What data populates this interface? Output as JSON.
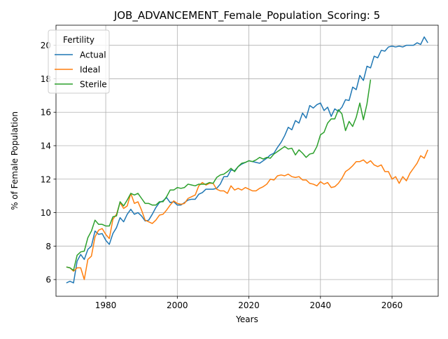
{
  "chart_data": {
    "type": "line",
    "title": "JOB_ADVANCEMENT_Female_Population_Scoring: 5",
    "xlabel": "Years",
    "ylabel": "% of Female Population",
    "xlim": [
      1966.1,
      2072.9
    ],
    "ylim": [
      5.0,
      21.2
    ],
    "xticks": [
      1980,
      2000,
      2020,
      2040,
      2060
    ],
    "yticks": [
      6,
      8,
      10,
      12,
      14,
      16,
      18,
      20
    ],
    "grid": true,
    "legend": {
      "title": "Fertility",
      "placement": "upper-left"
    },
    "series": [
      {
        "name": "Actual",
        "color": "#1f77b4",
        "points": [
          [
            1969,
            5.8
          ],
          [
            1970,
            5.9
          ],
          [
            1971,
            5.8
          ],
          [
            1972,
            7.1
          ],
          [
            1973,
            7.5
          ],
          [
            1974,
            7.2
          ],
          [
            1975,
            7.8
          ],
          [
            1976,
            8.0
          ],
          [
            1977,
            8.9
          ],
          [
            1978,
            8.7
          ],
          [
            1979,
            8.75
          ],
          [
            1980,
            8.35
          ],
          [
            1981,
            8.1
          ],
          [
            1982,
            8.75
          ],
          [
            1983,
            9.1
          ],
          [
            1984,
            9.7
          ],
          [
            1985,
            9.45
          ],
          [
            1986,
            9.9
          ],
          [
            1987,
            10.2
          ],
          [
            1988,
            9.9
          ],
          [
            1989,
            10.0
          ],
          [
            1990,
            9.8
          ],
          [
            1991,
            9.5
          ],
          [
            1992,
            9.55
          ],
          [
            1993,
            9.9
          ],
          [
            1994,
            10.3
          ],
          [
            1995,
            10.6
          ],
          [
            1996,
            10.7
          ],
          [
            1997,
            10.9
          ],
          [
            1998,
            10.6
          ],
          [
            1999,
            10.65
          ],
          [
            2000,
            10.45
          ],
          [
            2001,
            10.45
          ],
          [
            2002,
            10.6
          ],
          [
            2003,
            10.75
          ],
          [
            2004,
            10.8
          ],
          [
            2005,
            10.8
          ],
          [
            2006,
            11.1
          ],
          [
            2007,
            11.2
          ],
          [
            2008,
            11.4
          ],
          [
            2009,
            11.4
          ],
          [
            2010,
            11.4
          ],
          [
            2011,
            11.45
          ],
          [
            2012,
            11.7
          ],
          [
            2013,
            12.15
          ],
          [
            2014,
            12.15
          ],
          [
            2015,
            12.55
          ],
          [
            2016,
            12.5
          ],
          [
            2017,
            12.75
          ],
          [
            2018,
            12.9
          ],
          [
            2019,
            13.0
          ],
          [
            2020,
            13.1
          ],
          [
            2021,
            13.05
          ],
          [
            2022,
            13.0
          ],
          [
            2023,
            12.95
          ],
          [
            2024,
            13.1
          ],
          [
            2025,
            13.25
          ],
          [
            2026,
            13.45
          ],
          [
            2027,
            13.55
          ],
          [
            2028,
            13.9
          ],
          [
            2029,
            14.2
          ],
          [
            2030,
            14.6
          ],
          [
            2031,
            15.1
          ],
          [
            2032,
            14.95
          ],
          [
            2033,
            15.5
          ],
          [
            2034,
            15.35
          ],
          [
            2035,
            15.95
          ],
          [
            2036,
            15.65
          ],
          [
            2037,
            16.4
          ],
          [
            2038,
            16.25
          ],
          [
            2039,
            16.45
          ],
          [
            2040,
            16.55
          ],
          [
            2041,
            16.1
          ],
          [
            2042,
            16.3
          ],
          [
            2043,
            15.75
          ],
          [
            2044,
            16.2
          ],
          [
            2045,
            16.05
          ],
          [
            2046,
            16.3
          ],
          [
            2047,
            16.75
          ],
          [
            2048,
            16.7
          ],
          [
            2049,
            17.5
          ],
          [
            2050,
            17.35
          ],
          [
            2051,
            18.2
          ],
          [
            2052,
            17.9
          ],
          [
            2053,
            18.75
          ],
          [
            2054,
            18.65
          ],
          [
            2055,
            19.35
          ],
          [
            2056,
            19.25
          ],
          [
            2057,
            19.7
          ],
          [
            2058,
            19.65
          ],
          [
            2059,
            19.9
          ],
          [
            2060,
            19.95
          ],
          [
            2061,
            19.9
          ],
          [
            2062,
            19.95
          ],
          [
            2063,
            19.9
          ],
          [
            2064,
            20.0
          ],
          [
            2065,
            20.0
          ],
          [
            2066,
            20.0
          ],
          [
            2067,
            20.15
          ],
          [
            2068,
            20.05
          ],
          [
            2069,
            20.5
          ],
          [
            2070,
            20.15
          ]
        ]
      },
      {
        "name": "Ideal",
        "color": "#ff7f0e",
        "points": [
          [
            1969,
            6.75
          ],
          [
            1970,
            6.7
          ],
          [
            1971,
            6.5
          ],
          [
            1972,
            6.7
          ],
          [
            1973,
            6.7
          ],
          [
            1974,
            6.0
          ],
          [
            1975,
            7.2
          ],
          [
            1976,
            7.4
          ],
          [
            1977,
            8.55
          ],
          [
            1978,
            8.95
          ],
          [
            1979,
            9.05
          ],
          [
            1980,
            8.7
          ],
          [
            1981,
            8.45
          ],
          [
            1982,
            9.6
          ],
          [
            1983,
            9.9
          ],
          [
            1984,
            10.6
          ],
          [
            1985,
            10.25
          ],
          [
            1986,
            10.4
          ],
          [
            1987,
            11.15
          ],
          [
            1988,
            10.55
          ],
          [
            1989,
            10.65
          ],
          [
            1990,
            10.15
          ],
          [
            1991,
            9.55
          ],
          [
            1992,
            9.45
          ],
          [
            1993,
            9.35
          ],
          [
            1994,
            9.55
          ],
          [
            1995,
            9.85
          ],
          [
            1996,
            9.9
          ],
          [
            1997,
            10.15
          ],
          [
            1998,
            10.45
          ],
          [
            1999,
            10.7
          ],
          [
            2000,
            10.55
          ],
          [
            2001,
            10.5
          ],
          [
            2002,
            10.55
          ],
          [
            2003,
            10.85
          ],
          [
            2004,
            10.95
          ],
          [
            2005,
            11.05
          ],
          [
            2006,
            11.6
          ],
          [
            2007,
            11.8
          ],
          [
            2008,
            11.65
          ],
          [
            2009,
            11.75
          ],
          [
            2010,
            11.75
          ],
          [
            2011,
            11.4
          ],
          [
            2012,
            11.3
          ],
          [
            2013,
            11.3
          ],
          [
            2014,
            11.15
          ],
          [
            2015,
            11.6
          ],
          [
            2016,
            11.35
          ],
          [
            2017,
            11.45
          ],
          [
            2018,
            11.35
          ],
          [
            2019,
            11.5
          ],
          [
            2020,
            11.4
          ],
          [
            2021,
            11.3
          ],
          [
            2022,
            11.3
          ],
          [
            2023,
            11.45
          ],
          [
            2024,
            11.55
          ],
          [
            2025,
            11.7
          ],
          [
            2026,
            12.0
          ],
          [
            2027,
            11.95
          ],
          [
            2028,
            12.2
          ],
          [
            2029,
            12.25
          ],
          [
            2030,
            12.2
          ],
          [
            2031,
            12.3
          ],
          [
            2032,
            12.15
          ],
          [
            2033,
            12.1
          ],
          [
            2034,
            12.15
          ],
          [
            2035,
            11.95
          ],
          [
            2036,
            11.95
          ],
          [
            2037,
            11.75
          ],
          [
            2038,
            11.7
          ],
          [
            2039,
            11.6
          ],
          [
            2040,
            11.85
          ],
          [
            2041,
            11.7
          ],
          [
            2042,
            11.8
          ],
          [
            2043,
            11.5
          ],
          [
            2044,
            11.55
          ],
          [
            2045,
            11.75
          ],
          [
            2046,
            12.05
          ],
          [
            2047,
            12.45
          ],
          [
            2048,
            12.6
          ],
          [
            2049,
            12.8
          ],
          [
            2050,
            13.05
          ],
          [
            2051,
            13.05
          ],
          [
            2052,
            13.15
          ],
          [
            2053,
            12.95
          ],
          [
            2054,
            13.1
          ],
          [
            2055,
            12.85
          ],
          [
            2056,
            12.75
          ],
          [
            2057,
            12.85
          ],
          [
            2058,
            12.45
          ],
          [
            2059,
            12.45
          ],
          [
            2060,
            12.0
          ],
          [
            2061,
            12.15
          ],
          [
            2062,
            11.75
          ],
          [
            2063,
            12.15
          ],
          [
            2064,
            11.9
          ],
          [
            2065,
            12.35
          ],
          [
            2066,
            12.65
          ],
          [
            2067,
            12.95
          ],
          [
            2068,
            13.4
          ],
          [
            2069,
            13.25
          ],
          [
            2070,
            13.75
          ]
        ]
      },
      {
        "name": "Sterile",
        "color": "#2ca02c",
        "points": [
          [
            1969,
            6.75
          ],
          [
            1970,
            6.7
          ],
          [
            1971,
            6.55
          ],
          [
            1972,
            7.45
          ],
          [
            1973,
            7.65
          ],
          [
            1974,
            7.7
          ],
          [
            1975,
            8.5
          ],
          [
            1976,
            8.9
          ],
          [
            1977,
            9.55
          ],
          [
            1978,
            9.3
          ],
          [
            1979,
            9.3
          ],
          [
            1980,
            9.2
          ],
          [
            1981,
            9.2
          ],
          [
            1982,
            9.75
          ],
          [
            1983,
            9.8
          ],
          [
            1984,
            10.65
          ],
          [
            1985,
            10.4
          ],
          [
            1986,
            10.75
          ],
          [
            1987,
            11.15
          ],
          [
            1988,
            11.05
          ],
          [
            1989,
            11.15
          ],
          [
            1990,
            10.85
          ],
          [
            1991,
            10.55
          ],
          [
            1992,
            10.55
          ],
          [
            1993,
            10.45
          ],
          [
            1994,
            10.45
          ],
          [
            1995,
            10.65
          ],
          [
            1996,
            10.65
          ],
          [
            1997,
            10.95
          ],
          [
            1998,
            11.35
          ],
          [
            1999,
            11.35
          ],
          [
            2000,
            11.5
          ],
          [
            2001,
            11.45
          ],
          [
            2002,
            11.5
          ],
          [
            2003,
            11.7
          ],
          [
            2004,
            11.65
          ],
          [
            2005,
            11.6
          ],
          [
            2006,
            11.7
          ],
          [
            2007,
            11.7
          ],
          [
            2008,
            11.7
          ],
          [
            2009,
            11.8
          ],
          [
            2010,
            11.75
          ],
          [
            2011,
            12.1
          ],
          [
            2012,
            12.25
          ],
          [
            2013,
            12.3
          ],
          [
            2014,
            12.45
          ],
          [
            2015,
            12.65
          ],
          [
            2016,
            12.45
          ],
          [
            2017,
            12.75
          ],
          [
            2018,
            12.95
          ],
          [
            2019,
            13.0
          ],
          [
            2020,
            13.1
          ],
          [
            2021,
            13.05
          ],
          [
            2022,
            13.15
          ],
          [
            2023,
            13.3
          ],
          [
            2024,
            13.2
          ],
          [
            2025,
            13.3
          ],
          [
            2026,
            13.25
          ],
          [
            2027,
            13.5
          ],
          [
            2028,
            13.65
          ],
          [
            2029,
            13.8
          ],
          [
            2030,
            13.95
          ],
          [
            2031,
            13.8
          ],
          [
            2032,
            13.85
          ],
          [
            2033,
            13.45
          ],
          [
            2034,
            13.75
          ],
          [
            2035,
            13.55
          ],
          [
            2036,
            13.3
          ],
          [
            2037,
            13.5
          ],
          [
            2038,
            13.55
          ],
          [
            2039,
            13.95
          ],
          [
            2040,
            14.65
          ],
          [
            2041,
            14.8
          ],
          [
            2042,
            15.35
          ],
          [
            2043,
            15.6
          ],
          [
            2044,
            15.6
          ],
          [
            2045,
            16.15
          ],
          [
            2046,
            15.9
          ],
          [
            2047,
            14.9
          ],
          [
            2048,
            15.45
          ],
          [
            2049,
            15.15
          ],
          [
            2050,
            15.7
          ],
          [
            2051,
            16.55
          ],
          [
            2052,
            15.55
          ],
          [
            2053,
            16.5
          ],
          [
            2054,
            17.95
          ]
        ]
      }
    ]
  }
}
